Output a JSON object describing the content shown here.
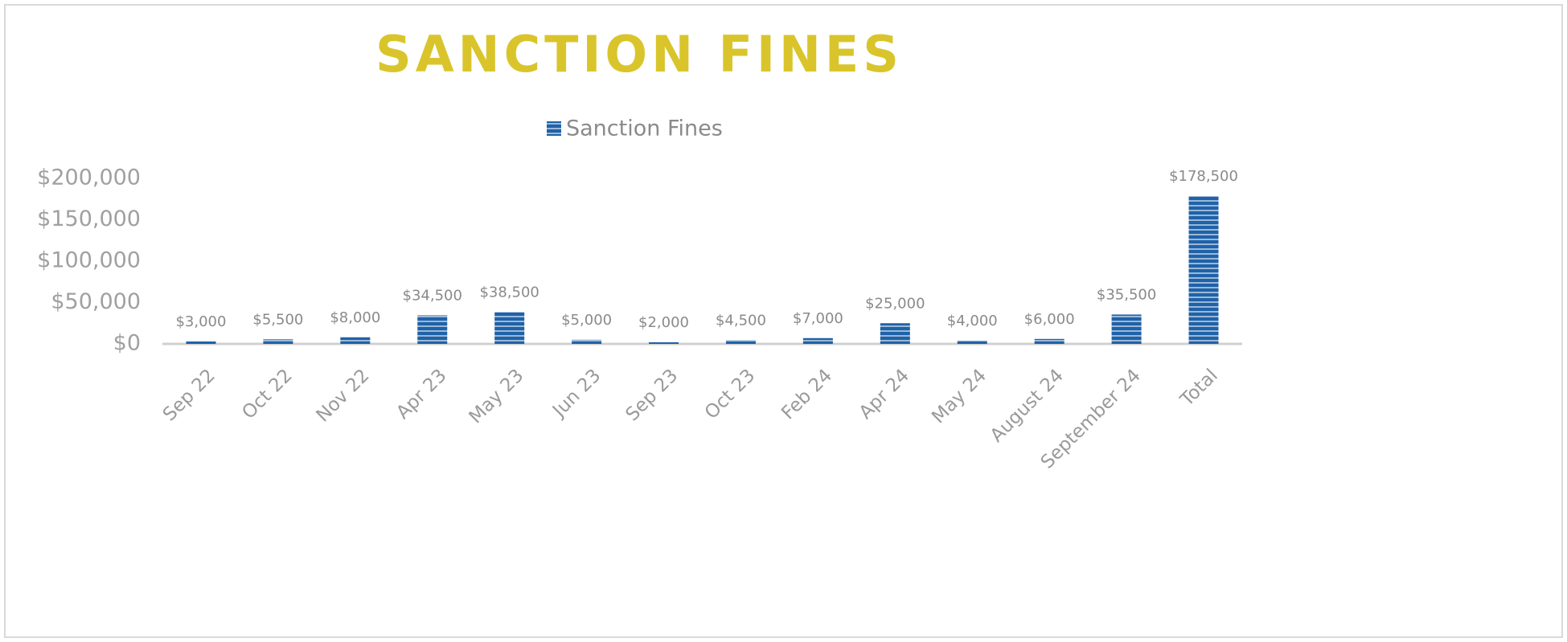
{
  "chart_data": {
    "type": "bar",
    "title": "SANCTION FINES",
    "categories": [
      "Sep 22",
      "Oct 22",
      "Nov 22",
      "Apr 23",
      "May 23",
      "Jun 23",
      "Sep 23",
      "Oct 23",
      "Feb 24",
      "Apr 24",
      "May 24",
      "August 24",
      "September 24",
      "Total"
    ],
    "series": [
      {
        "name": "Sanction Fines",
        "color": "#1f62a8",
        "values": [
          3000,
          5500,
          8000,
          34500,
          38500,
          5000,
          2000,
          4500,
          7000,
          25000,
          4000,
          6000,
          35500,
          178500
        ],
        "value_labels": [
          "$3,000",
          "$5,500",
          "$8,000",
          "$34,500",
          "$38,500",
          "$5,000",
          "$2,000",
          "$4,500",
          "$7,000",
          "$25,000",
          "$4,000",
          "$6,000",
          "$35,500",
          "$178,500"
        ]
      }
    ],
    "ylim": [
      0,
      200000
    ],
    "yticks": [
      {
        "value": 0,
        "label": "$0"
      },
      {
        "value": 50000,
        "label": "$50,000"
      },
      {
        "value": 100000,
        "label": "$100,000"
      },
      {
        "value": 150000,
        "label": "$150,000"
      },
      {
        "value": 200000,
        "label": "$200,000"
      }
    ],
    "legend": "top"
  }
}
